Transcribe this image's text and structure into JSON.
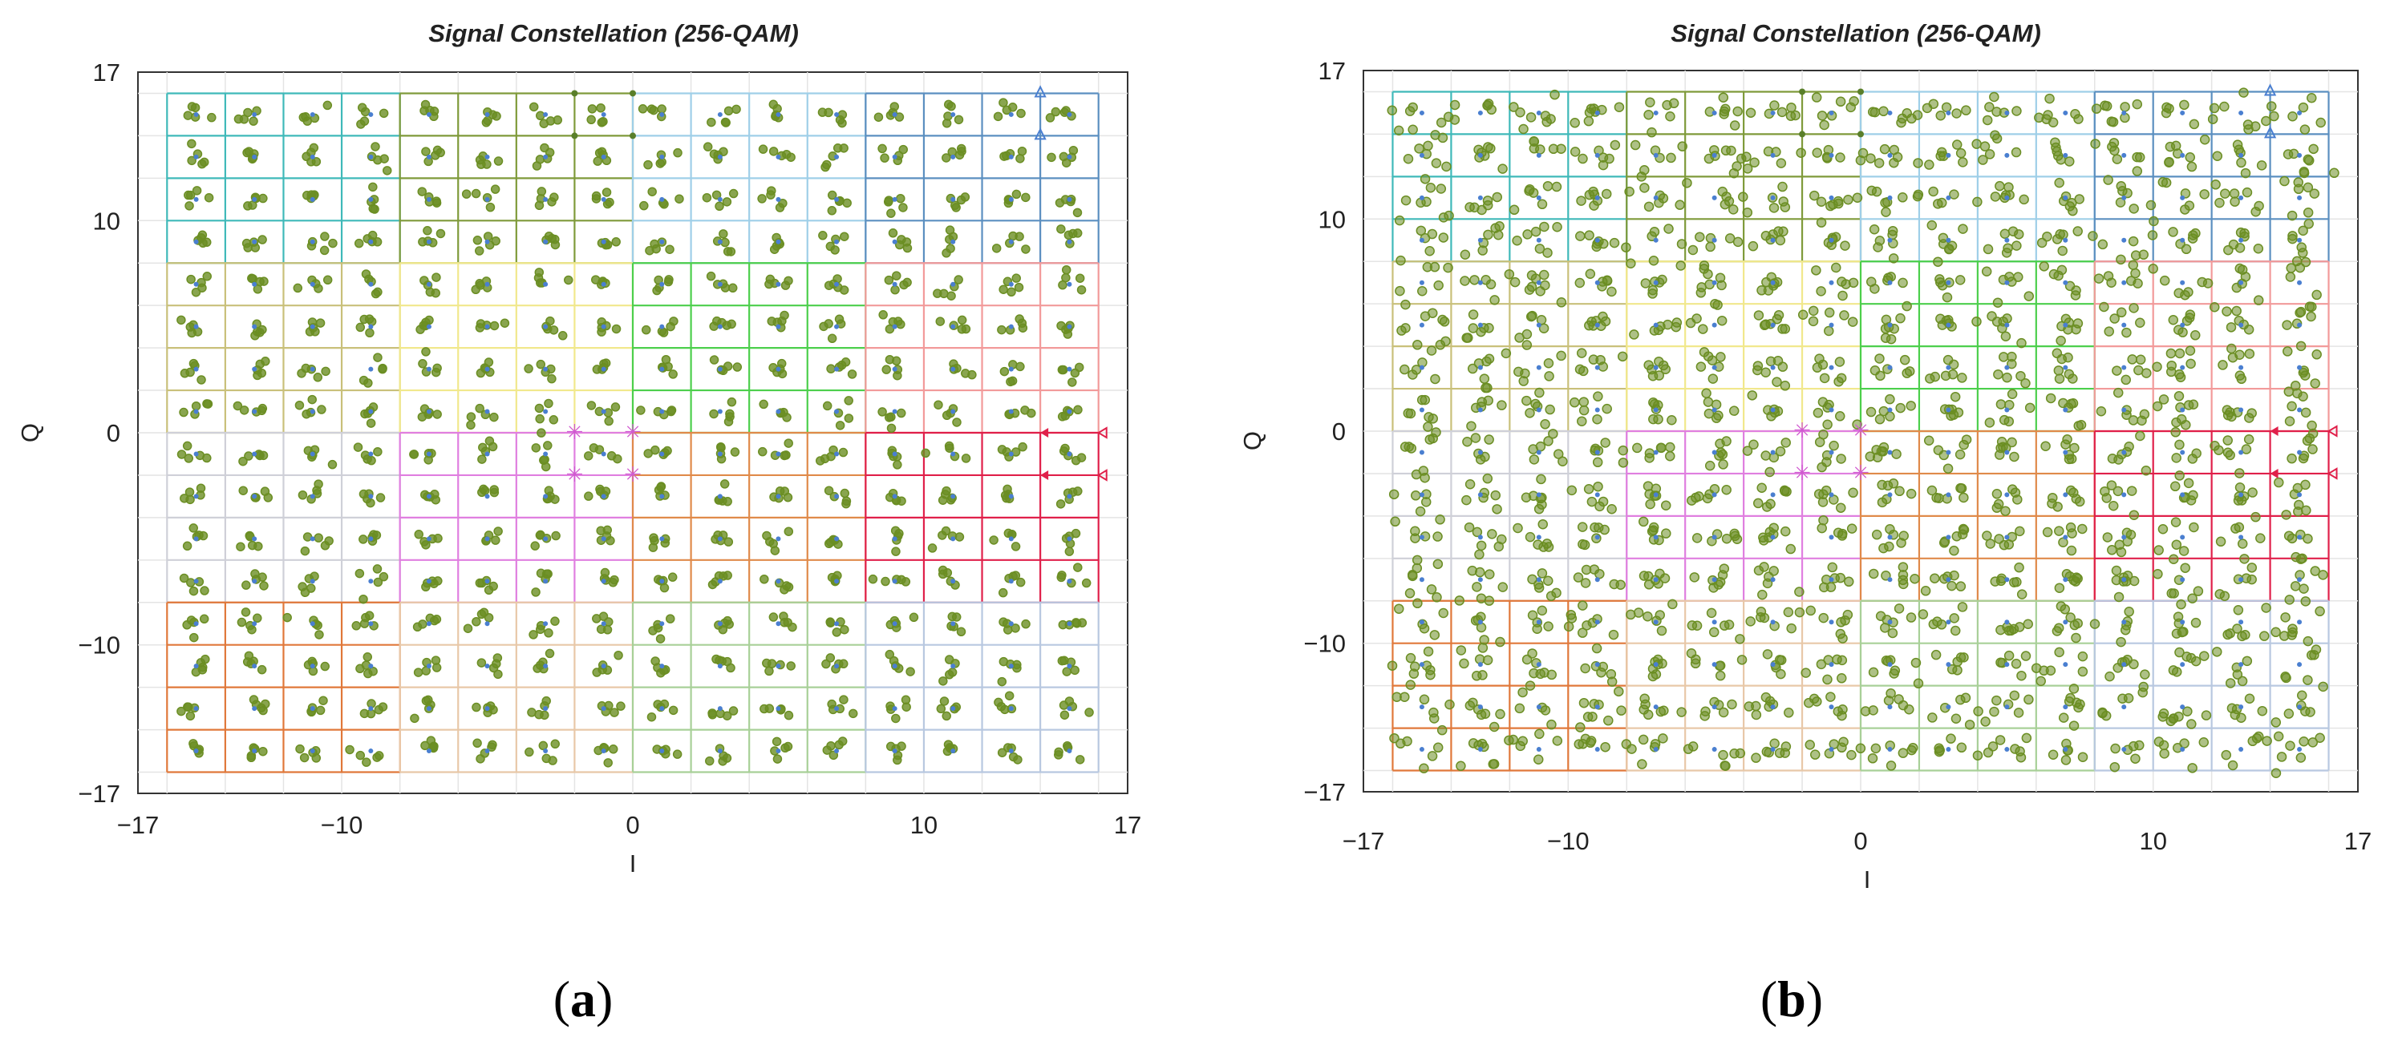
{
  "chart_data": [
    {
      "type": "scatter",
      "panel": "a",
      "panel_label": {
        "open": "(",
        "letter": "a",
        "close": ")"
      },
      "title": "Signal Constellation (256-QAM)",
      "xlabel": "I",
      "ylabel": "Q",
      "xlim": [
        -17,
        17
      ],
      "ylim": [
        -17,
        17
      ],
      "x_ticks": [
        -17,
        -10,
        0,
        10,
        17
      ],
      "x_tick_labels": [
        "−17",
        "−10",
        "0",
        "10",
        "17"
      ],
      "y_ticks": [
        17,
        10,
        0,
        -10,
        -17
      ],
      "y_tick_labels": [
        "17",
        "10",
        "0",
        "−10",
        "−17"
      ],
      "constellation_levels": [
        -15,
        -13,
        -11,
        -9,
        -7,
        -5,
        -3,
        -1,
        1,
        3,
        5,
        7,
        9,
        11,
        13,
        15
      ],
      "points_per_symbol": 5,
      "noise": 0.25,
      "distortion": "none (compact clusters)",
      "marker_color": "#6b8e23",
      "reference_color": "#4a7fd0"
    },
    {
      "type": "scatter",
      "panel": "b",
      "panel_label": {
        "open": "(",
        "letter": "b",
        "close": ")"
      },
      "title": "Signal Constellation (256-QAM)",
      "xlabel": "I",
      "ylabel": "Q",
      "xlim": [
        -17,
        17
      ],
      "ylim": [
        -17,
        17
      ],
      "x_ticks": [
        -17,
        -10,
        0,
        10,
        17
      ],
      "x_tick_labels": [
        "−17",
        "−10",
        "0",
        "10",
        "17"
      ],
      "y_ticks": [
        17,
        10,
        0,
        -10,
        -17
      ],
      "y_tick_labels": [
        "17",
        "10",
        "0",
        "−10",
        "−17"
      ],
      "constellation_levels": [
        -15,
        -13,
        -11,
        -9,
        -7,
        -5,
        -3,
        -1,
        1,
        3,
        5,
        7,
        9,
        11,
        13,
        15
      ],
      "points_per_symbol": 7,
      "noise": 0.35,
      "distortion": "amplitude-dependent smearing (elongated clusters)",
      "marker_color": "#6b8e23",
      "reference_color": "#4a7fd0"
    }
  ],
  "decision_regions": [
    {
      "i_range": [
        -16,
        -8
      ],
      "q_range": [
        8,
        16
      ],
      "color": "#3fb9b9"
    },
    {
      "i_range": [
        -8,
        0
      ],
      "q_range": [
        8,
        16
      ],
      "color": "#7f9a3a"
    },
    {
      "i_range": [
        0,
        8
      ],
      "q_range": [
        8,
        16
      ],
      "color": "#9fcfe8"
    },
    {
      "i_range": [
        8,
        16
      ],
      "q_range": [
        8,
        16
      ],
      "color": "#5b8fc0"
    },
    {
      "i_range": [
        -16,
        -8
      ],
      "q_range": [
        0,
        8
      ],
      "color": "#c9c07a"
    },
    {
      "i_range": [
        -8,
        0
      ],
      "q_range": [
        0,
        8
      ],
      "color": "#f1e88c"
    },
    {
      "i_range": [
        0,
        8
      ],
      "q_range": [
        0,
        8
      ],
      "color": "#4ccf4c"
    },
    {
      "i_range": [
        8,
        16
      ],
      "q_range": [
        0,
        8
      ],
      "color": "#f29a9a"
    },
    {
      "i_range": [
        -16,
        -8
      ],
      "q_range": [
        -8,
        0
      ],
      "color": "#cfd0d8"
    },
    {
      "i_range": [
        -8,
        0
      ],
      "q_range": [
        -8,
        0
      ],
      "color": "#e07fe0"
    },
    {
      "i_range": [
        0,
        8
      ],
      "q_range": [
        -8,
        0
      ],
      "color": "#e08a4a"
    },
    {
      "i_range": [
        8,
        16
      ],
      "q_range": [
        -8,
        0
      ],
      "color": "#e0204a"
    },
    {
      "i_range": [
        -16,
        -8
      ],
      "q_range": [
        -16,
        -8
      ],
      "color": "#e0783a"
    },
    {
      "i_range": [
        -8,
        0
      ],
      "q_range": [
        -16,
        -8
      ],
      "color": "#e8c8a8"
    },
    {
      "i_range": [
        0,
        8
      ],
      "q_range": [
        -16,
        -8
      ],
      "color": "#a8d098"
    },
    {
      "i_range": [
        8,
        16
      ],
      "q_range": [
        -16,
        -8
      ],
      "color": "#b8c8e0"
    }
  ]
}
